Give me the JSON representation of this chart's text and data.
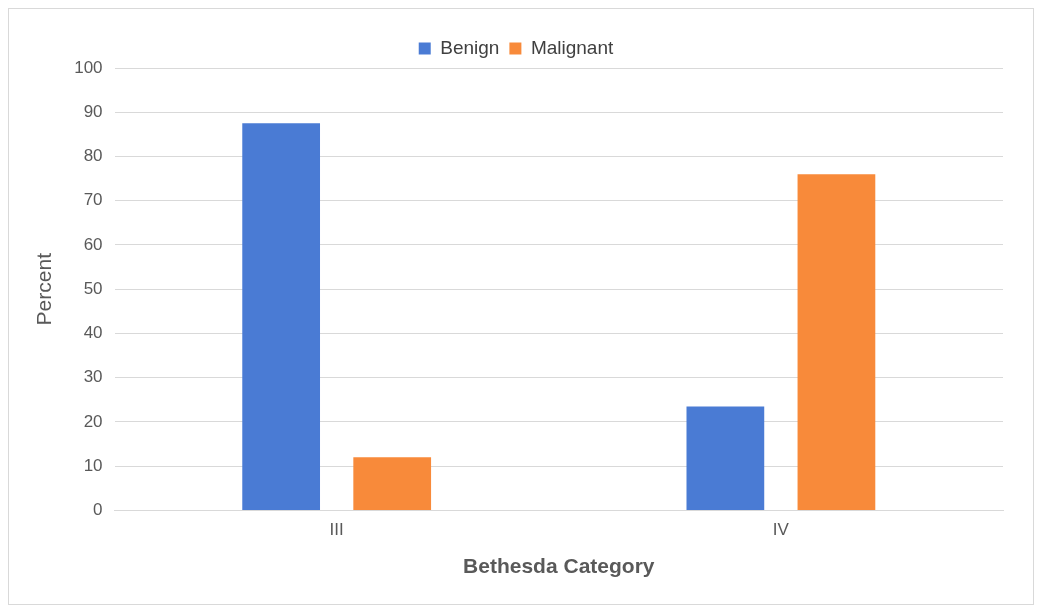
{
  "chart_data": {
    "type": "bar",
    "xlabel": "Bethesda Category",
    "ylabel": "Percent",
    "categories": [
      "III",
      "IV"
    ],
    "series": [
      {
        "name": "Benign",
        "color": "#4a7bd4",
        "values": [
          87.5,
          23.5
        ]
      },
      {
        "name": "Malignant",
        "color": "#f88a3a",
        "values": [
          12,
          76
        ]
      }
    ],
    "ylim": [
      0,
      100
    ],
    "yticks": [
      0,
      10,
      20,
      30,
      40,
      50,
      60,
      70,
      80,
      90,
      100
    ],
    "grid": "y",
    "legend": "top"
  }
}
